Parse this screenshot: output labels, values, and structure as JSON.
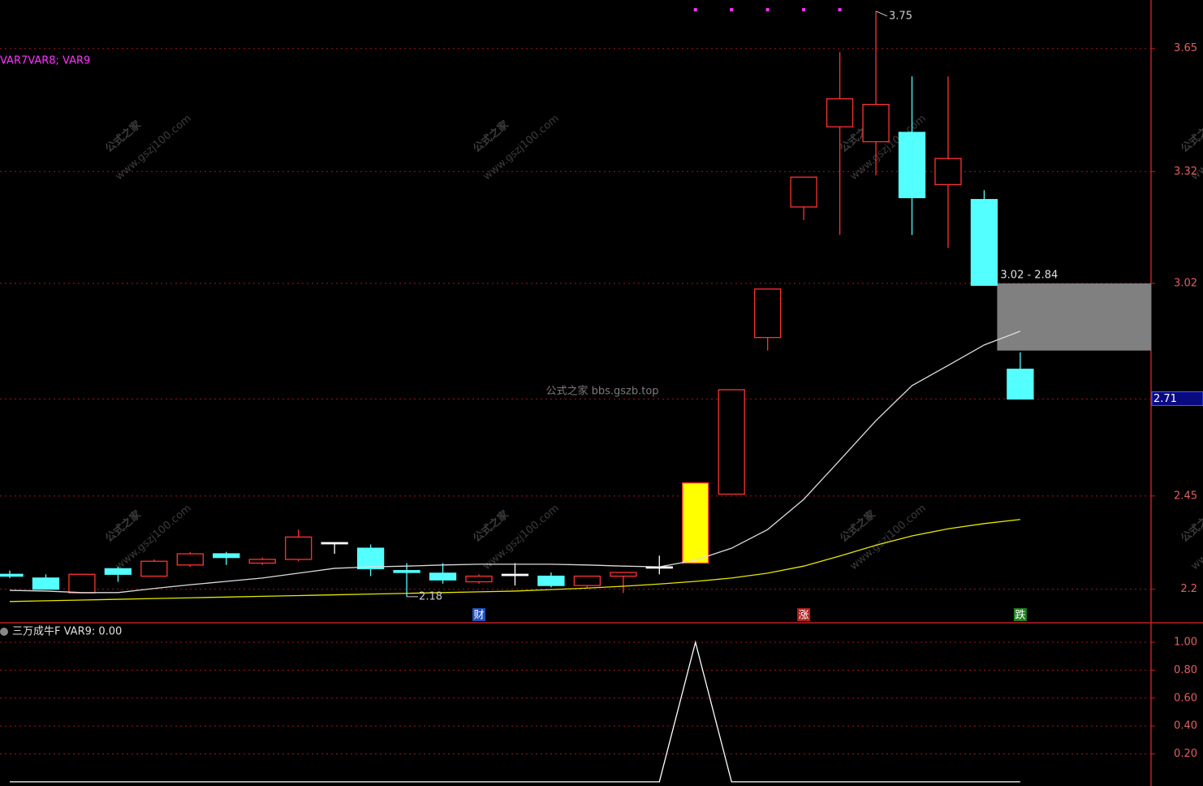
{
  "chart_data": [
    {
      "type": "candlestick",
      "legend_text": "VAR7VAR8; VAR9",
      "ylim": [
        2.11,
        3.78
      ],
      "yticks": [
        2.2,
        2.45,
        2.71,
        3.02,
        3.32,
        3.65
      ],
      "grid": true,
      "open": [
        2.24,
        2.23,
        2.19,
        2.255,
        2.235,
        2.265,
        2.295,
        2.27,
        2.28,
        2.325,
        2.31,
        2.25,
        2.243,
        2.22,
        2.24,
        2.235,
        2.21,
        2.235,
        2.26,
        2.27,
        2.455,
        2.875,
        3.225,
        3.44,
        3.4,
        3.425,
        3.285,
        3.245,
        2.79
      ],
      "high": [
        2.25,
        2.24,
        2.24,
        2.26,
        2.28,
        2.3,
        2.3,
        2.285,
        2.36,
        2.325,
        2.32,
        2.27,
        2.27,
        2.24,
        2.27,
        2.245,
        2.235,
        2.245,
        2.29,
        2.485,
        2.735,
        3.005,
        3.305,
        3.64,
        3.75,
        3.575,
        3.575,
        3.27,
        2.835
      ],
      "low": [
        2.23,
        2.2,
        2.19,
        2.22,
        2.235,
        2.26,
        2.265,
        2.265,
        2.275,
        2.295,
        2.235,
        2.18,
        2.215,
        2.215,
        2.21,
        2.205,
        2.205,
        2.19,
        2.24,
        2.27,
        2.455,
        2.84,
        3.19,
        3.15,
        3.31,
        3.15,
        3.115,
        3.015,
        2.71
      ],
      "close": [
        2.235,
        2.2,
        2.24,
        2.24,
        2.275,
        2.295,
        2.285,
        2.28,
        2.34,
        2.325,
        2.255,
        2.245,
        2.225,
        2.235,
        2.24,
        2.21,
        2.235,
        2.245,
        2.26,
        2.485,
        2.735,
        3.005,
        3.305,
        3.515,
        3.5,
        3.25,
        3.355,
        3.015,
        2.71
      ],
      "up_color": "#ff3232",
      "down_color": "#54ffff",
      "flat_color": "#ffffff",
      "highlight_candle": 19,
      "highlight_color": "#ffff00",
      "series": [
        {
          "color": "#dcdcdc",
          "values": [
            2.197,
            2.195,
            2.191,
            2.191,
            2.202,
            2.212,
            2.221,
            2.23,
            2.243,
            2.256,
            2.26,
            2.262,
            2.265,
            2.267,
            2.267,
            2.267,
            2.265,
            2.262,
            2.26,
            2.278,
            2.31,
            2.36,
            2.441,
            2.546,
            2.652,
            2.746,
            2.8,
            2.855,
            2.892
          ]
        },
        {
          "color": "#e6e600",
          "values": [
            2.167,
            2.169,
            2.171,
            2.173,
            2.175,
            2.177,
            2.179,
            2.181,
            2.183,
            2.185,
            2.187,
            2.189,
            2.191,
            2.193,
            2.195,
            2.199,
            2.203,
            2.208,
            2.214,
            2.221,
            2.23,
            2.243,
            2.262,
            2.289,
            2.318,
            2.343,
            2.362,
            2.376,
            2.387
          ]
        }
      ],
      "zone": {
        "high": 3.02,
        "low": 2.84,
        "label": "3.02 - 2.84",
        "color": "#808080"
      },
      "signals": [
        {
          "index": 13,
          "label": "财",
          "color": "#2050c0"
        },
        {
          "index": 22,
          "label": "涨",
          "color": "#b02020"
        },
        {
          "index": 28,
          "label": "跌",
          "color": "#208020"
        }
      ],
      "dot_signals": [
        19,
        20,
        21,
        22,
        23
      ],
      "high_mark": 24,
      "low_mark": 11,
      "watermark_main": "公式之家 bbs.gszb.top",
      "watermark_name": "公式之家",
      "watermark_url": "www.gszj100.com"
    },
    {
      "type": "line",
      "title": "三万成牛F  VAR9: 0.00",
      "ylim": [
        -0.03,
        1.134
      ],
      "yticks": [
        {
          "value": 0.2,
          "label": "0.20"
        },
        {
          "value": 0.4,
          "label": "0.40"
        },
        {
          "value": 0.6,
          "label": "0.60"
        },
        {
          "value": 0.8,
          "label": "0.80"
        },
        {
          "value": 1.0,
          "label": "1.00"
        }
      ],
      "grid": true,
      "series": [
        {
          "color": "#ffffff",
          "values": [
            0,
            0,
            0,
            0,
            0,
            0,
            0,
            0,
            0,
            0,
            0,
            0,
            0,
            0,
            0,
            0,
            0,
            0,
            0,
            1,
            0,
            0,
            0,
            0,
            0,
            0,
            0,
            0,
            0
          ]
        }
      ]
    }
  ]
}
